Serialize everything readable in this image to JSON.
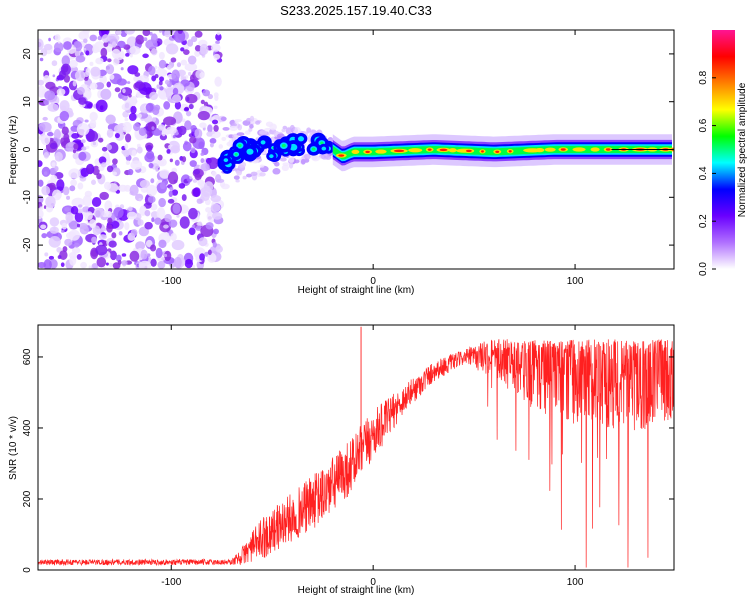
{
  "title": "S233.2025.157.19.40.C33",
  "chart_data": [
    {
      "type": "heatmap",
      "xlabel": "Height of straight line (km)",
      "ylabel": "Frequency (Hz)",
      "xlim": [
        -166,
        149
      ],
      "ylim": [
        -25,
        25
      ],
      "x_ticks": [
        -100,
        0,
        100
      ],
      "y_ticks": [
        -20,
        -10,
        0,
        10,
        20
      ],
      "noise_region_x": [
        -166,
        -76
      ],
      "transition_region_x": [
        -76,
        -20
      ],
      "ridge_region_x": [
        -20,
        149
      ],
      "ridge": [
        {
          "x": -74,
          "y": -4
        },
        {
          "x": -70,
          "y": -1
        },
        {
          "x": -62,
          "y": 0.5
        },
        {
          "x": -50,
          "y": 0
        },
        {
          "x": -38,
          "y": 1
        },
        {
          "x": -28,
          "y": 1
        },
        {
          "x": -20,
          "y": 0
        },
        {
          "x": -15,
          "y": -1.5
        },
        {
          "x": -10,
          "y": -0.5
        },
        {
          "x": 0,
          "y": -0.5
        },
        {
          "x": 30,
          "y": 0
        },
        {
          "x": 60,
          "y": -0.5
        },
        {
          "x": 90,
          "y": 0
        },
        {
          "x": 110,
          "y": 0
        },
        {
          "x": 149,
          "y": 0
        }
      ],
      "reference_line": {
        "x_start": 118,
        "x_end": 149,
        "y": 0
      },
      "colorbar": {
        "label": "Normalized spectral amplitude",
        "range": [
          0,
          1
        ],
        "ticks": [
          0.0,
          0.2,
          0.4,
          0.6,
          0.8
        ],
        "tick_labels": [
          "0.0",
          "0.2",
          "0.4",
          "0.6",
          "0.8"
        ],
        "colors": [
          "#ffffff",
          "#b070ff",
          "#6a00ff",
          "#0000ff",
          "#00ffff",
          "#00ff00",
          "#ffff00",
          "#ff7f00",
          "#ff0000",
          "#ff1493"
        ]
      },
      "series_color": "#7f00ff"
    },
    {
      "type": "line",
      "xlabel": "Height of straight line (km)",
      "ylabel": "SNR (10 * v/v)",
      "xlim": [
        -166,
        149
      ],
      "ylim": [
        0,
        690
      ],
      "x_ticks": [
        -100,
        0,
        100
      ],
      "y_ticks": [
        0,
        200,
        400,
        600
      ],
      "color": "#ff2020",
      "envelope": [
        {
          "x": -166,
          "mean": 22,
          "spread": 8
        },
        {
          "x": -70,
          "mean": 22,
          "spread": 8
        },
        {
          "x": -65,
          "mean": 40,
          "spread": 25
        },
        {
          "x": -55,
          "mean": 90,
          "spread": 60
        },
        {
          "x": -40,
          "mean": 150,
          "spread": 70
        },
        {
          "x": -25,
          "mean": 210,
          "spread": 80
        },
        {
          "x": -10,
          "mean": 300,
          "spread": 80
        },
        {
          "x": 0,
          "mean": 380,
          "spread": 70
        },
        {
          "x": 15,
          "mean": 480,
          "spread": 40
        },
        {
          "x": 30,
          "mean": 560,
          "spread": 30
        },
        {
          "x": 45,
          "mean": 600,
          "spread": 20
        },
        {
          "x": 60,
          "mean": 600,
          "spread": 60
        },
        {
          "x": 80,
          "mean": 570,
          "spread": 120
        },
        {
          "x": 100,
          "mean": 560,
          "spread": 150
        },
        {
          "x": 149,
          "mean": 540,
          "spread": 160
        }
      ],
      "spike": {
        "x": -6,
        "y": 685
      }
    }
  ]
}
